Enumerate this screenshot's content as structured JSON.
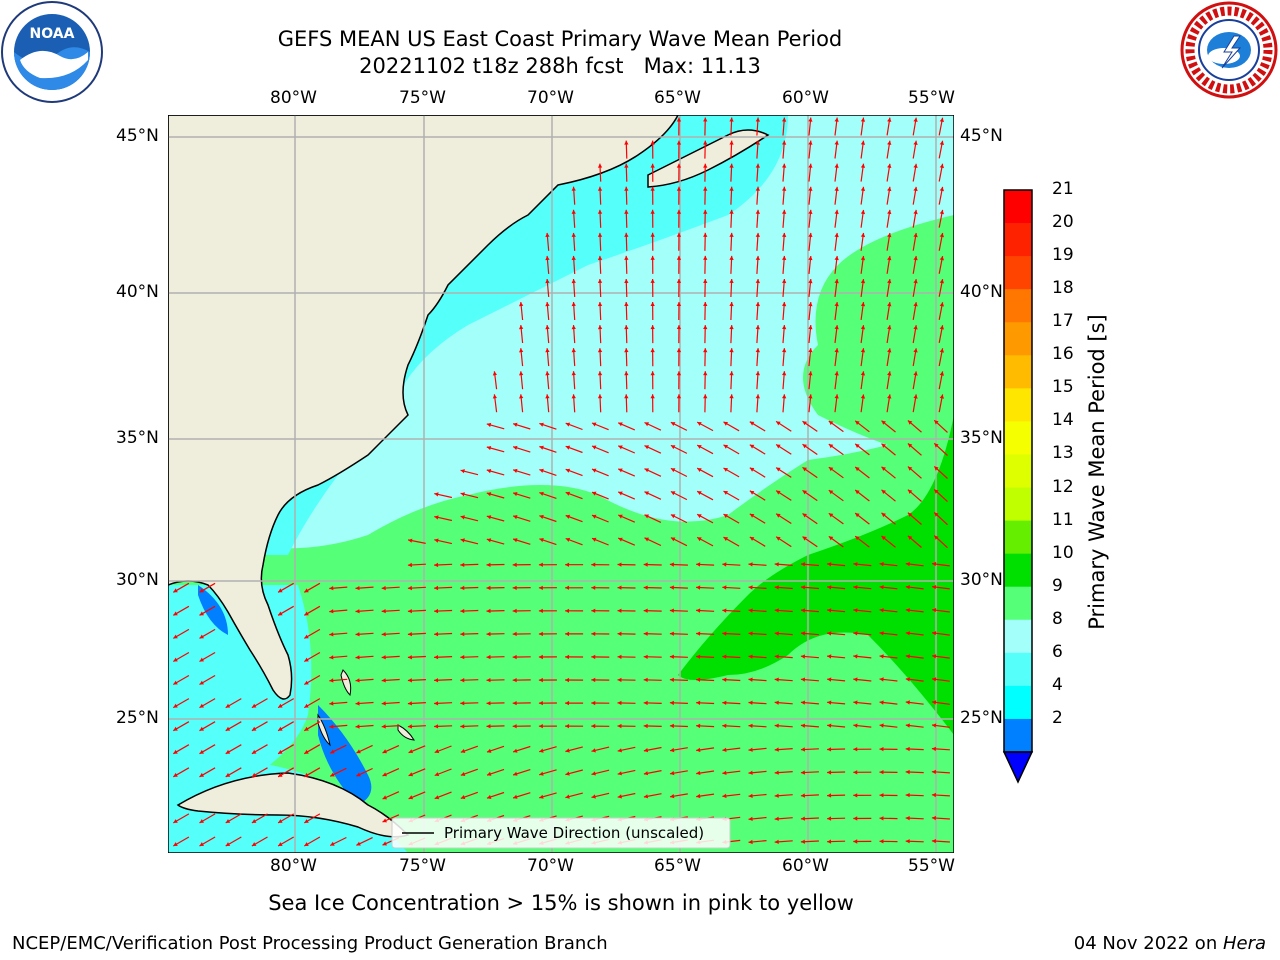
{
  "header": {
    "title_line1": "GEFS MEAN US East Coast Primary Wave Mean Period",
    "title_line2": "20221102 t18z 288h fcst   Max: 11.13"
  },
  "logos": {
    "left": {
      "name": "NOAA",
      "text": "NOAA"
    },
    "right": {
      "name": "National Weather Service"
    }
  },
  "map": {
    "lon_labels": [
      "80°W",
      "75°W",
      "70°W",
      "65°W",
      "60°W",
      "55°W"
    ],
    "lat_labels": [
      "45°N",
      "40°N",
      "35°N",
      "30°N",
      "25°N"
    ],
    "legend_text": "Primary Wave Direction (unscaled)",
    "colors": {
      "land": "#efeddc",
      "coast": "#000000",
      "grid": "#b0b0b0",
      "arrow": "#ff0000"
    }
  },
  "colorbar": {
    "title": "Primary Wave Mean Period [s]",
    "tick_labels": [
      "21",
      "20",
      "19",
      "18",
      "17",
      "16",
      "15",
      "14",
      "13",
      "12",
      "11",
      "10",
      "9",
      "8",
      "6",
      "4",
      "2"
    ],
    "colors": [
      "#ff0000",
      "#ff2200",
      "#ff4400",
      "#ff7700",
      "#ff9900",
      "#ffbb00",
      "#ffe600",
      "#f5ff00",
      "#ddff00",
      "#c0ff00",
      "#66ee00",
      "#00e000",
      "#55ff77",
      "#a2fffa",
      "#55fffa",
      "#00ffff",
      "#0080ff"
    ],
    "extend_color": "#0000ff"
  },
  "subtitle": "Sea Ice Concentration > 15% is shown in pink to yellow",
  "footer": {
    "left": "NCEP/EMC/Verification Post Processing Product Generation Branch",
    "right_date": "04 Nov 2022 on ",
    "right_host": "Hera"
  }
}
